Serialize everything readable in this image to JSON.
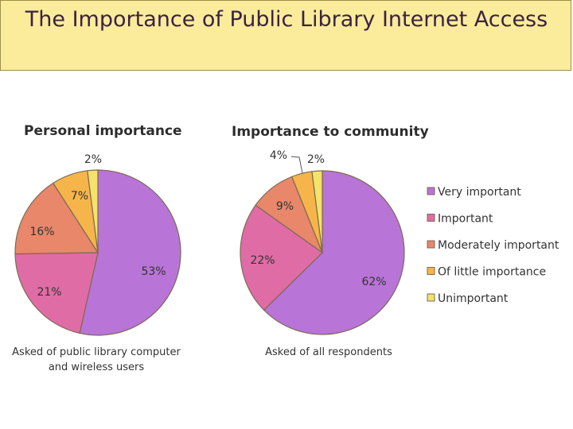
{
  "title": "The Importance of Public Library Internet Access",
  "colors": {
    "title_background": "#fbec9b",
    "title_text": "#3c2145"
  },
  "legend": [
    {
      "label": "Very important",
      "color": "#b874d6"
    },
    {
      "label": "Important",
      "color": "#e06ca6"
    },
    {
      "label": "Moderately important",
      "color": "#e8876a"
    },
    {
      "label": "Of little importance",
      "color": "#f6b54a"
    },
    {
      "label": "Unimportant",
      "color": "#f4e26a"
    }
  ],
  "chart_data": [
    {
      "type": "pie",
      "title": "Personal importance",
      "note": [
        "Asked of public library computer",
        "and wireless users"
      ],
      "categories": [
        "Very important",
        "Important",
        "Moderately important",
        "Of little importance",
        "Unimportant"
      ],
      "values": [
        53,
        21,
        16,
        7,
        2
      ],
      "value_labels": [
        "53%",
        "21%",
        "16%",
        "7%",
        "2%"
      ]
    },
    {
      "type": "pie",
      "title": "Importance to community",
      "note": [
        "Asked of all respondents"
      ],
      "categories": [
        "Very important",
        "Important",
        "Moderately important",
        "Of little importance",
        "Unimportant"
      ],
      "values": [
        62,
        22,
        9,
        4,
        2
      ],
      "value_labels": [
        "62%",
        "22%",
        "9%",
        "4%",
        "2%"
      ]
    }
  ]
}
